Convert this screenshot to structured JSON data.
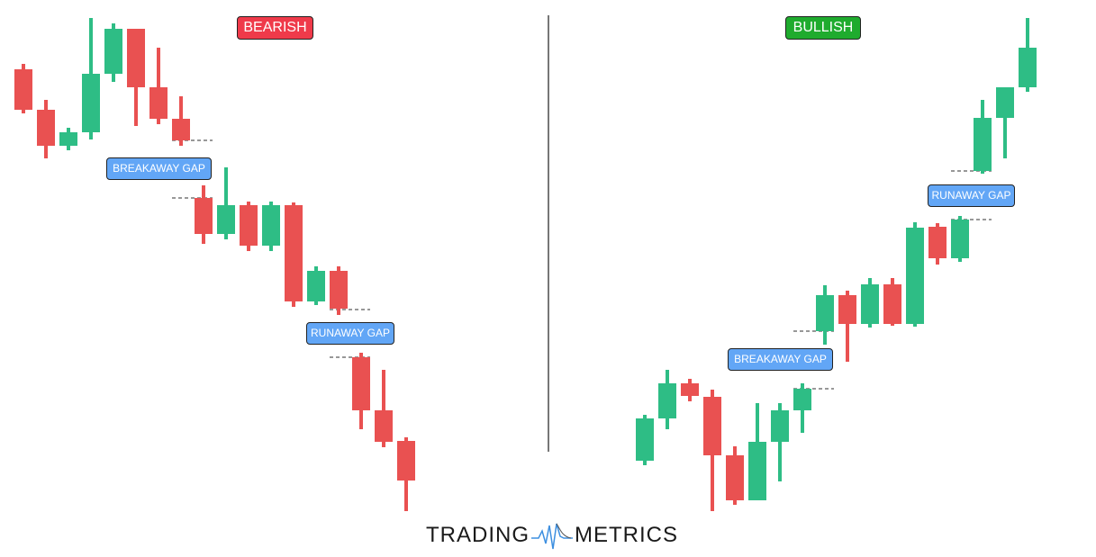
{
  "labels": {
    "bearish": "BEARISH",
    "bullish": "BULLISH",
    "bearish_breakaway": "BREAKAWAY GAP",
    "bearish_runaway": "RUNAWAY GAP",
    "bullish_breakaway": "BREAKAWAY GAP",
    "bullish_runaway": "RUNAWAY GAP"
  },
  "logo": {
    "left": "TRADING",
    "right": "METRICS"
  },
  "colors": {
    "up": "#2ebd85",
    "down": "#e95151",
    "bearish_badge": "#ef3a4a",
    "bullish_badge": "#1fab2e",
    "gap_label": "#62a6f6"
  },
  "chart_data": [
    {
      "type": "candlestick",
      "title": "BEARISH",
      "ylim": [
        0,
        600
      ],
      "candles": [
        {
          "o": 523,
          "h": 529,
          "l": 474,
          "c": 478
        },
        {
          "o": 478,
          "h": 489,
          "l": 424,
          "c": 438
        },
        {
          "o": 438,
          "h": 458,
          "l": 433,
          "c": 453
        },
        {
          "o": 453,
          "h": 580,
          "l": 445,
          "c": 518
        },
        {
          "o": 518,
          "h": 574,
          "l": 509,
          "c": 568
        },
        {
          "o": 568,
          "h": 568,
          "l": 460,
          "c": 503
        },
        {
          "o": 503,
          "h": 547,
          "l": 462,
          "c": 468
        },
        {
          "o": 468,
          "h": 493,
          "l": 438,
          "c": 444
        },
        {
          "o": 380,
          "h": 394,
          "l": 329,
          "c": 340
        },
        {
          "o": 340,
          "h": 414,
          "l": 334,
          "c": 372
        },
        {
          "o": 372,
          "h": 376,
          "l": 321,
          "c": 327
        },
        {
          "o": 327,
          "h": 376,
          "l": 321,
          "c": 372
        },
        {
          "o": 372,
          "h": 375,
          "l": 259,
          "c": 265
        },
        {
          "o": 265,
          "h": 304,
          "l": 261,
          "c": 299
        },
        {
          "o": 299,
          "h": 304,
          "l": 250,
          "c": 257
        },
        {
          "o": 203,
          "h": 208,
          "l": 123,
          "c": 144
        },
        {
          "o": 144,
          "h": 189,
          "l": 103,
          "c": 109
        },
        {
          "o": 110,
          "h": 114,
          "l": 32,
          "c": 66
        }
      ],
      "annotations": [
        "BREAKAWAY GAP",
        "RUNAWAY GAP"
      ]
    },
    {
      "type": "candlestick",
      "title": "BULLISH",
      "ylim": [
        0,
        600
      ],
      "candles": [
        {
          "o": 88,
          "h": 139,
          "l": 83,
          "c": 135
        },
        {
          "o": 135,
          "h": 189,
          "l": 123,
          "c": 174
        },
        {
          "o": 174,
          "h": 179,
          "l": 154,
          "c": 160
        },
        {
          "o": 159,
          "h": 167,
          "l": 32,
          "c": 94
        },
        {
          "o": 94,
          "h": 104,
          "l": 39,
          "c": 44
        },
        {
          "o": 44,
          "h": 152,
          "l": 44,
          "c": 109
        },
        {
          "o": 109,
          "h": 152,
          "l": 65,
          "c": 144
        },
        {
          "o": 144,
          "h": 174,
          "l": 119,
          "c": 168
        },
        {
          "o": 232,
          "h": 283,
          "l": 217,
          "c": 272
        },
        {
          "o": 272,
          "h": 277,
          "l": 198,
          "c": 240
        },
        {
          "o": 240,
          "h": 291,
          "l": 236,
          "c": 284
        },
        {
          "o": 284,
          "h": 291,
          "l": 238,
          "c": 240
        },
        {
          "o": 240,
          "h": 353,
          "l": 237,
          "c": 347
        },
        {
          "o": 348,
          "h": 352,
          "l": 306,
          "c": 313
        },
        {
          "o": 313,
          "h": 360,
          "l": 309,
          "c": 356
        },
        {
          "o": 410,
          "h": 489,
          "l": 407,
          "c": 469
        },
        {
          "o": 469,
          "h": 503,
          "l": 424,
          "c": 503
        },
        {
          "o": 503,
          "h": 580,
          "l": 498,
          "c": 547
        }
      ],
      "annotations": [
        "BREAKAWAY GAP",
        "RUNAWAY GAP"
      ]
    }
  ]
}
